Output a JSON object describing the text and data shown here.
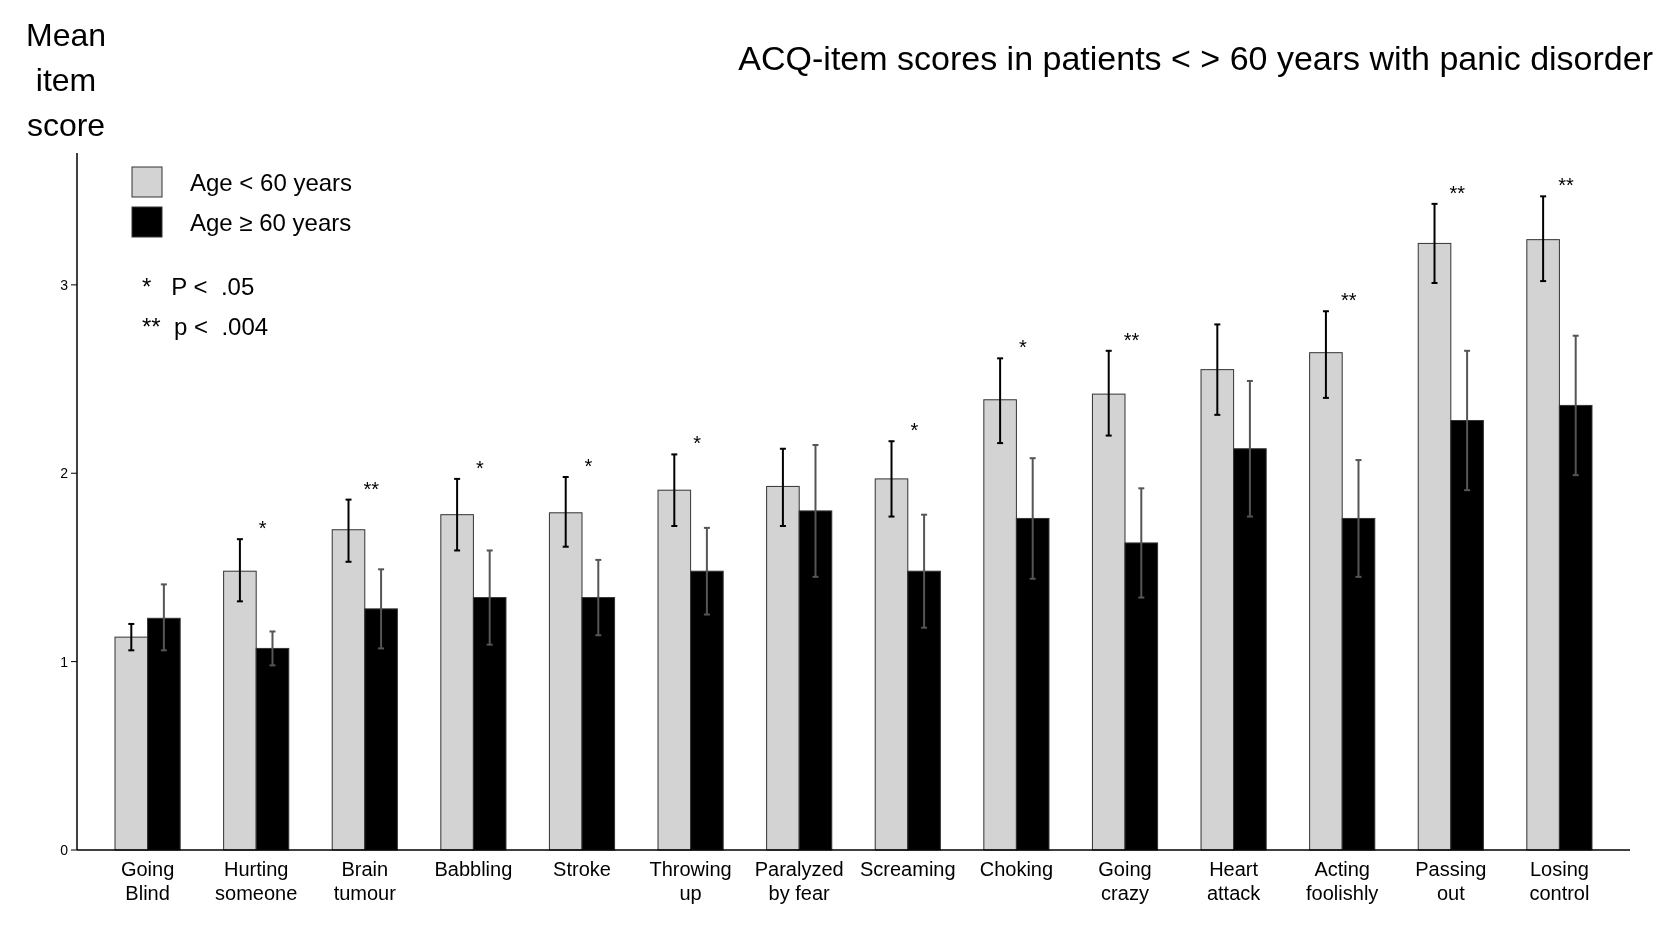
{
  "chart_data": {
    "type": "bar",
    "title": "ACQ-item scores in patients < > 60 years with panic disorder",
    "ylabel": "Mean item score",
    "categories": [
      "Going\nBlind",
      "Hurting\nsomeone",
      "Brain\ntumour",
      "Babbling",
      "Stroke",
      "Throwing\nup",
      "Paralyzed\nby fear",
      "Screaming",
      "Choking",
      "Going\ncrazy",
      "Heart\nattack",
      "Acting\nfoolishly",
      "Passing\nout",
      "Losing\ncontrol"
    ],
    "series": [
      {
        "name": "Age < 60 years",
        "color": "#d3d3d3",
        "values": [
          1.13,
          1.48,
          1.7,
          1.78,
          1.79,
          1.91,
          1.93,
          1.97,
          2.39,
          2.42,
          2.55,
          2.64,
          3.22,
          3.24
        ],
        "value_labels": [
          null,
          "*",
          "**",
          "*",
          "*",
          "*",
          null,
          "*",
          "*",
          "**",
          null,
          "**",
          "**",
          "**"
        ],
        "errors": [
          [
            1.06,
            1.2
          ],
          [
            1.32,
            1.65
          ],
          [
            1.53,
            1.86
          ],
          [
            1.59,
            1.97
          ],
          [
            1.61,
            1.98
          ],
          [
            1.72,
            2.1
          ],
          [
            1.72,
            2.13
          ],
          [
            1.77,
            2.17
          ],
          [
            2.16,
            2.61
          ],
          [
            2.2,
            2.65
          ],
          [
            2.31,
            2.79
          ],
          [
            2.4,
            2.86
          ],
          [
            3.01,
            3.43
          ],
          [
            3.02,
            3.47
          ]
        ]
      },
      {
        "name": "Age ≥ 60 years",
        "color": "#000000",
        "values": [
          1.23,
          1.07,
          1.28,
          1.34,
          1.34,
          1.48,
          1.8,
          1.48,
          1.76,
          1.63,
          2.13,
          1.76,
          2.28,
          2.36
        ],
        "errors": [
          [
            1.06,
            1.41
          ],
          [
            0.98,
            1.16
          ],
          [
            1.07,
            1.49
          ],
          [
            1.09,
            1.59
          ],
          [
            1.14,
            1.54
          ],
          [
            1.25,
            1.71
          ],
          [
            1.45,
            2.15
          ],
          [
            1.18,
            1.78
          ],
          [
            1.44,
            2.08
          ],
          [
            1.34,
            1.92
          ],
          [
            1.77,
            2.49
          ],
          [
            1.45,
            2.07
          ],
          [
            1.91,
            2.65
          ],
          [
            1.99,
            2.73
          ]
        ]
      }
    ],
    "ylim": [
      0,
      3.7
    ],
    "yticks": [
      0,
      1,
      2,
      3
    ],
    "grid": false,
    "legend": "top left",
    "annotations": [
      "*   P <  .05",
      "**  p <  .004"
    ]
  }
}
